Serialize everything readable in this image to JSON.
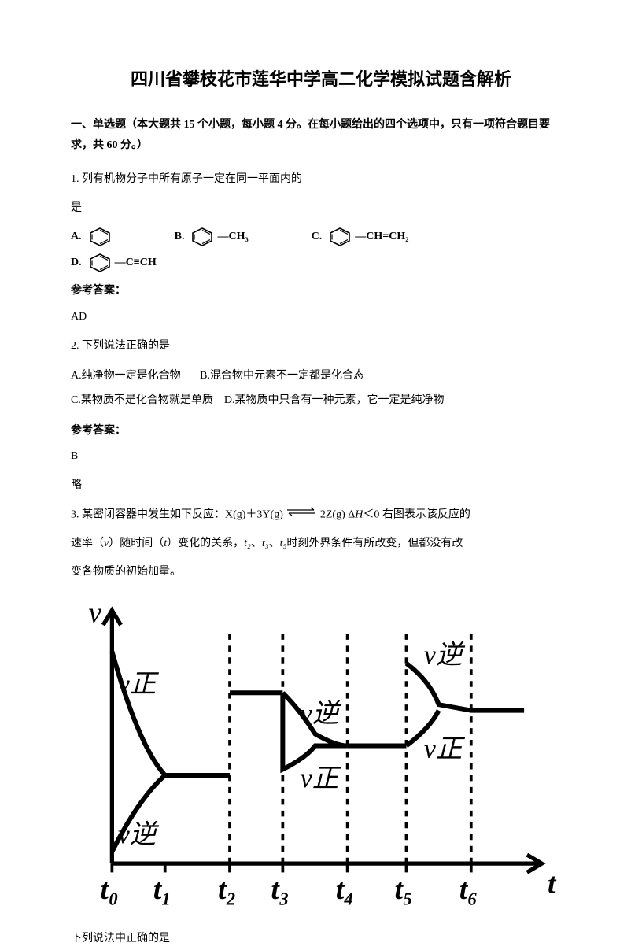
{
  "title": "四川省攀枝花市莲华中学高二化学模拟试题含解析",
  "section_header": "一、单选题（本大题共 15 个小题，每小题 4 分。在每小题给出的四个选项中，只有一项符合题目要求，共 60 分。）",
  "q1": {
    "stem_line1": "1. 列有机物分子中所有原子一定在同一平面内的",
    "stem_line2": "是",
    "optA": "A.",
    "optB": "B.",
    "optC": "C.",
    "optD": "D.",
    "grpB": "—CH₃",
    "grpC": "—CH=CH₂",
    "grpD": "—C≡CH",
    "answer_label": "参考答案：",
    "answer": "AD"
  },
  "q2": {
    "stem": "2. 下列说法正确的是",
    "optA": "A.纯净物一定是化合物",
    "optB": "B.混合物中元素不一定都是化合态",
    "optC": "C.某物质不是化合物就是单质",
    "optD": "D.某物质中只含有一种元素，它一定是纯净物",
    "answer_label": "参考答案：",
    "answer": "B",
    "brief": "略"
  },
  "q3": {
    "stem_a": "3. 某密闭容器中发生如下反应：X(g)＋3Y(g)",
    "stem_b": "2Z(g)  Δ",
    "stem_H": "H",
    "stem_c": "＜0 右图表示该反应的",
    "stem2_a": "速率（",
    "stem2_v": "v",
    "stem2_b": "）随时间（",
    "stem2_t": "t",
    "stem2_c": "）变化的关系，",
    "stem2_t2": "t₂",
    "stem2_sep1": "、",
    "stem2_t3": "t₃",
    "stem2_sep2": "、",
    "stem2_t5": "t₅",
    "stem2_d": "时刻外界条件有所改变，但都没有改",
    "stem3": "变各物质的初始加量。",
    "last": "下列说法中正确的是"
  },
  "graph": {
    "width": 170,
    "height": 110,
    "axis_color": "#000000",
    "curve_color": "#000000",
    "stroke_width": 1.4,
    "y_label": "v",
    "v_ni": "v逆",
    "v_zheng": "v正",
    "x_ticks": [
      "t₀",
      "t₁",
      "t₂",
      "t₃",
      "t₄",
      "t₅",
      "t₆"
    ],
    "x_tail": "t",
    "fontsize": 10
  }
}
